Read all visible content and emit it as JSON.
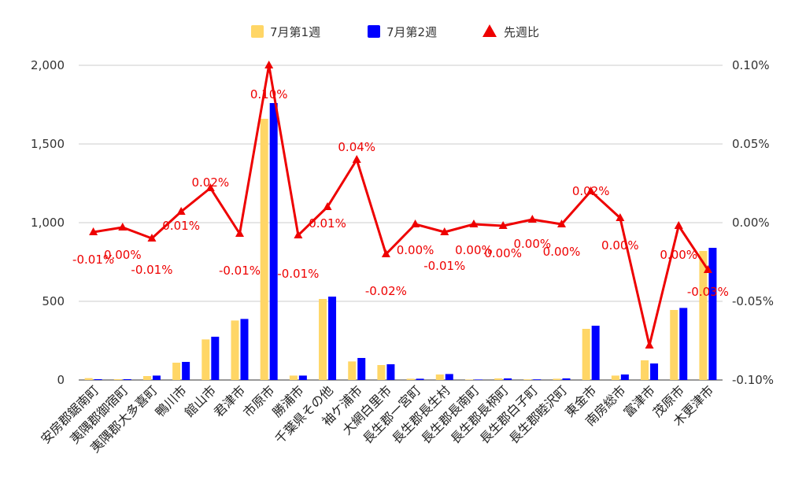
{
  "chart_data": {
    "type": "bar",
    "categories": [
      "安房郡鋸南町",
      "夷隅郡御宿町",
      "夷隅郡大多喜町",
      "鴨川市",
      "館山市",
      "君津市",
      "市原市",
      "勝浦市",
      "千葉県その他",
      "袖ケ浦市",
      "大網白里市",
      "長生郡一宮町",
      "長生郡長生村",
      "長生郡長南町",
      "長生郡長柄町",
      "長生郡白子町",
      "長生郡睦沢町",
      "東金市",
      "南房総市",
      "富津市",
      "茂原市",
      "木更津市"
    ],
    "series": [
      {
        "name": "7月第1週",
        "type": "bar",
        "axis": "left",
        "color": "#ffd666",
        "values": [
          12,
          5,
          25,
          110,
          258,
          378,
          1660,
          28,
          515,
          118,
          95,
          8,
          35,
          3,
          10,
          4,
          8,
          325,
          28,
          125,
          445,
          820
        ]
      },
      {
        "name": "7月第2週",
        "type": "bar",
        "axis": "left",
        "color": "#0000ff",
        "values": [
          5,
          5,
          28,
          115,
          275,
          388,
          1760,
          28,
          530,
          140,
          100,
          8,
          38,
          3,
          10,
          4,
          10,
          345,
          35,
          105,
          458,
          840
        ]
      },
      {
        "name": "先週比",
        "type": "line",
        "axis": "right",
        "color": "#ee0000",
        "values": [
          -0.006,
          -0.003,
          -0.01,
          0.007,
          0.022,
          -0.007,
          0.1,
          -0.008,
          0.01,
          0.04,
          -0.02,
          -0.001,
          -0.006,
          -0.001,
          -0.002,
          0.002,
          -0.001,
          0.02,
          0.003,
          -0.078,
          -0.002,
          -0.03
        ]
      }
    ],
    "point_labels": [
      "-0.01%",
      "0.00%",
      "-0.01%",
      "0.01%",
      "0.02%",
      "-0.01%",
      "0.10%",
      "-0.01%",
      "0.01%",
      "0.04%",
      "-0.02%",
      "0.00%",
      "-0.01%",
      "0.00%",
      "0.00%",
      "0.00%",
      "0.00%",
      "0.02%",
      "0.00%",
      "",
      "0.00%",
      "-0.03%"
    ],
    "y_left": {
      "min": 0,
      "max": 2000,
      "ticks": [
        0,
        500,
        1000,
        1500,
        2000
      ],
      "tick_labels": [
        "0",
        "500",
        "1,000",
        "1,500",
        "2,000"
      ]
    },
    "y_right": {
      "min": -0.1,
      "max": 0.1,
      "ticks": [
        -0.1,
        -0.05,
        0,
        0.05,
        0.1
      ],
      "tick_labels": [
        "-0.10%",
        "-0.05%",
        "0.00%",
        "0.05%",
        "0.10%"
      ]
    },
    "legend": {
      "position": "top",
      "items": [
        "7月第1週",
        "7月第2週",
        "先週比"
      ]
    },
    "grid": true
  }
}
